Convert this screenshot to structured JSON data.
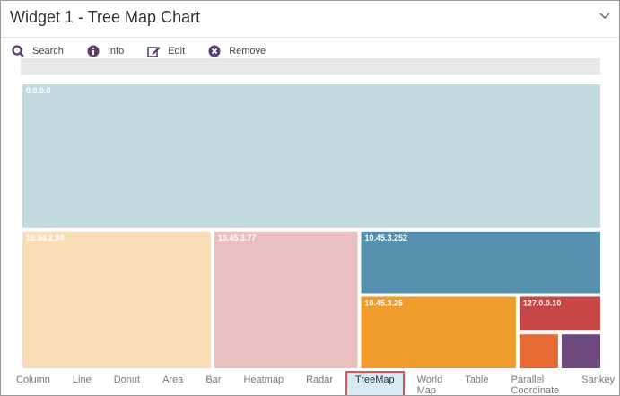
{
  "header": {
    "title": "Widget 1 - Tree Map Chart"
  },
  "toolbar": [
    "Search",
    "Info",
    "Edit",
    "Remove"
  ],
  "tabs": [
    "Column",
    "Line",
    "Donut",
    "Area",
    "Bar",
    "Heatmap",
    "Radar",
    "TreeMap",
    "World Map",
    "Table",
    "Parallel Coordinate",
    "Sankey"
  ],
  "active_tab": 7,
  "chart_data": {
    "type": "treemap",
    "categories": [
      "0.0.0.0",
      "10.94.2.94",
      "10.45.3.77",
      "10.45.3.252",
      "10.45.3.25",
      "127.0.0.10",
      null,
      null
    ],
    "values": [
      54,
      17,
      13,
      10,
      7.5,
      2,
      1,
      1
    ],
    "colors": [
      "#c2d9e0",
      "#f7dcb6",
      "#e8bebf",
      "#5591ae",
      "#ef9c2d",
      "#c84646",
      "#e86a33",
      "#6d4a7d"
    ]
  }
}
